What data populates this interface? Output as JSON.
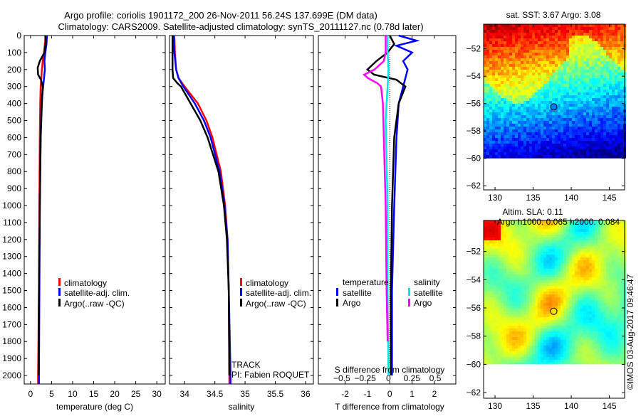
{
  "title_line1": "Argo profile: coriolis 1901172_200 26-Nov-2011 56.24S 137.699E (DM data)",
  "title_line2": "Climatology: CARS2009. Satellite-adjusted climatology: synTS_20111127.nc (0.78d later)",
  "watermark": "©IMOS 03-Aug-2017 09:46:47",
  "colors": {
    "climatology": "#ff0000",
    "satellite": "#0000ff",
    "argo": "#000000",
    "sal_satellite": "#00e5e5",
    "sal_argo": "#ff00ff"
  },
  "chart_data": [
    {
      "type": "line",
      "xlabel": "temperature (deg C)",
      "xlim": [
        -1.5,
        32
      ],
      "ylim": [
        2050,
        0
      ],
      "xticks": [
        0,
        5,
        10,
        15,
        20,
        25,
        30
      ],
      "yticks": [
        0,
        100,
        200,
        300,
        400,
        500,
        600,
        700,
        800,
        900,
        1000,
        1100,
        1200,
        1300,
        1400,
        1500,
        1600,
        1700,
        1800,
        1900,
        2000
      ],
      "legend": [
        "climatology",
        "satellite-adj. clim.",
        "Argo(..raw -QC)"
      ],
      "series": [
        {
          "name": "climatology",
          "color": "#ff0000",
          "depth": [
            0,
            50,
            100,
            150,
            200,
            300,
            400,
            600,
            1000,
            1500,
            2000,
            2050
          ],
          "values": [
            3.6,
            3.4,
            3.2,
            2.9,
            2.7,
            2.4,
            2.3,
            2.2,
            2.1,
            2.0,
            1.8,
            1.8
          ]
        },
        {
          "name": "satellite-adj. clim.",
          "color": "#0000ff",
          "depth": [
            0,
            50,
            100,
            150,
            200,
            300,
            400,
            600,
            1000,
            1500,
            2000,
            2050
          ],
          "values": [
            3.9,
            3.8,
            3.5,
            3.3,
            3.4,
            3.0,
            2.6,
            2.4,
            2.2,
            2.1,
            2.0,
            2.0
          ]
        },
        {
          "name": "Argo(..raw -QC)",
          "color": "#000000",
          "depth": [
            0,
            40,
            100,
            150,
            190,
            230,
            260,
            300,
            400,
            600,
            1000,
            1500,
            2000
          ],
          "values": [
            3.5,
            3.6,
            3.3,
            2.2,
            1.7,
            1.8,
            2.5,
            2.9,
            2.7,
            2.4,
            2.2,
            2.0,
            1.9
          ]
        }
      ]
    },
    {
      "type": "line",
      "xlabel": "salinity",
      "xlim": [
        33.75,
        36.13
      ],
      "ylim": [
        2050,
        0
      ],
      "xticks": [
        34,
        34.5,
        35,
        35.5,
        36
      ],
      "legend": [
        "climatology",
        "satellite-adj. clim.",
        "Argo(..raw -QC)"
      ],
      "annotations": [
        "TRACK",
        "PI: Fabien ROQUET"
      ],
      "series": [
        {
          "name": "climatology",
          "color": "#ff0000",
          "depth": [
            0,
            100,
            200,
            250,
            300,
            400,
            500,
            600,
            800,
            1000,
            1200,
            1500,
            2000,
            2050
          ],
          "values": [
            33.83,
            33.84,
            33.86,
            33.9,
            34.0,
            34.22,
            34.36,
            34.46,
            34.6,
            34.67,
            34.71,
            34.73,
            34.74,
            34.74
          ]
        },
        {
          "name": "satellite-adj. clim.",
          "color": "#0000ff",
          "depth": [
            0,
            100,
            200,
            250,
            300,
            400,
            500,
            600,
            800,
            1000,
            1200,
            1500,
            2000,
            2050
          ],
          "values": [
            33.82,
            33.83,
            33.86,
            33.9,
            33.98,
            34.17,
            34.32,
            34.43,
            34.58,
            34.66,
            34.71,
            34.73,
            34.76,
            34.76
          ]
        },
        {
          "name": "Argo(..raw -QC)",
          "color": "#000000",
          "depth": [
            0,
            100,
            200,
            250,
            280,
            300,
            400,
            500,
            600,
            800,
            1000,
            1200,
            1500,
            2000
          ],
          "values": [
            33.8,
            33.8,
            33.8,
            33.81,
            33.88,
            33.94,
            34.1,
            34.26,
            34.38,
            34.56,
            34.65,
            34.7,
            34.73,
            34.74
          ]
        }
      ]
    },
    {
      "type": "line",
      "xlabel": "T difference from climatology",
      "xlabel_top": "S difference from climatology",
      "xlim": [
        -3.2,
        2.96
      ],
      "xlim_s": [
        -0.75,
        0.72
      ],
      "ylim": [
        2050,
        0
      ],
      "xticks": [
        -2,
        -1,
        0,
        1,
        2
      ],
      "xticks_s": [
        -0.5,
        -0.25,
        0,
        0.25,
        0.5
      ],
      "legend_headers": [
        "temperature",
        "salinity"
      ],
      "legend": [
        "satellite",
        "Argo",
        "satellite",
        "Argo"
      ],
      "series": [
        {
          "name": "temperature satellite",
          "axis": "T",
          "color": "#0000ff",
          "depth": [
            0,
            30,
            60,
            100,
            150,
            200,
            250,
            300,
            400,
            600,
            1000,
            1500,
            2000
          ],
          "values": [
            0.4,
            1.2,
            0.3,
            1.0,
            0.6,
            0.8,
            0.7,
            0.6,
            0.4,
            0.3,
            0.2,
            0.1,
            0.1
          ]
        },
        {
          "name": "temperature Argo",
          "axis": "T",
          "color": "#000000",
          "depth": [
            0,
            50,
            100,
            150,
            200,
            230,
            260,
            300,
            400,
            600,
            1000,
            1500,
            2000
          ],
          "values": [
            0.0,
            0.2,
            -0.1,
            -0.6,
            -1.0,
            -0.7,
            0.3,
            0.7,
            0.4,
            0.2,
            0.1,
            0.05,
            0.05
          ]
        },
        {
          "name": "salinity satellite",
          "axis": "S",
          "color": "#00e5e5",
          "depth": [
            0,
            100,
            200,
            300,
            500,
            1000,
            1500,
            2000
          ],
          "values": [
            -0.01,
            -0.01,
            0.0,
            -0.01,
            -0.03,
            -0.01,
            -0.01,
            0.0
          ]
        },
        {
          "name": "salinity Argo",
          "axis": "S",
          "color": "#ff00ff",
          "depth": [
            0,
            100,
            150,
            200,
            230,
            250,
            280,
            300,
            400,
            600,
            1000,
            1500,
            1800
          ],
          "values": [
            -0.03,
            -0.03,
            -0.05,
            -0.15,
            -0.26,
            -0.22,
            -0.12,
            -0.08,
            -0.06,
            -0.05,
            -0.03,
            -0.02,
            -0.01
          ]
        }
      ]
    },
    {
      "type": "heatmap",
      "title": "sat. SST: 3.67 Argo: 3.08",
      "xlim": [
        128.5,
        147
      ],
      "ylim": [
        -62.3,
        -50.2
      ],
      "xticks": [
        130,
        135,
        140,
        145
      ],
      "yticks": [
        -52,
        -54,
        -56,
        -58,
        -60,
        -62
      ],
      "data_extent_lat": [
        -60,
        -50.2
      ],
      "marker": {
        "lon": 137.7,
        "lat": -56.24
      }
    },
    {
      "type": "heatmap",
      "title_line1": "Altim. SLA: 0.11",
      "title_line2": "Argo h1000: 0.065 h2000: 0.084",
      "xlim": [
        128.5,
        147
      ],
      "ylim": [
        -62.4,
        -49.8
      ],
      "xticks": [
        130,
        135,
        140,
        145
      ],
      "yticks": [
        -52,
        -54,
        -56,
        -58,
        -60,
        -62
      ],
      "data_extent_lat": [
        -60,
        -49.8
      ],
      "marker": {
        "lon": 137.7,
        "lat": -56.24
      }
    }
  ]
}
